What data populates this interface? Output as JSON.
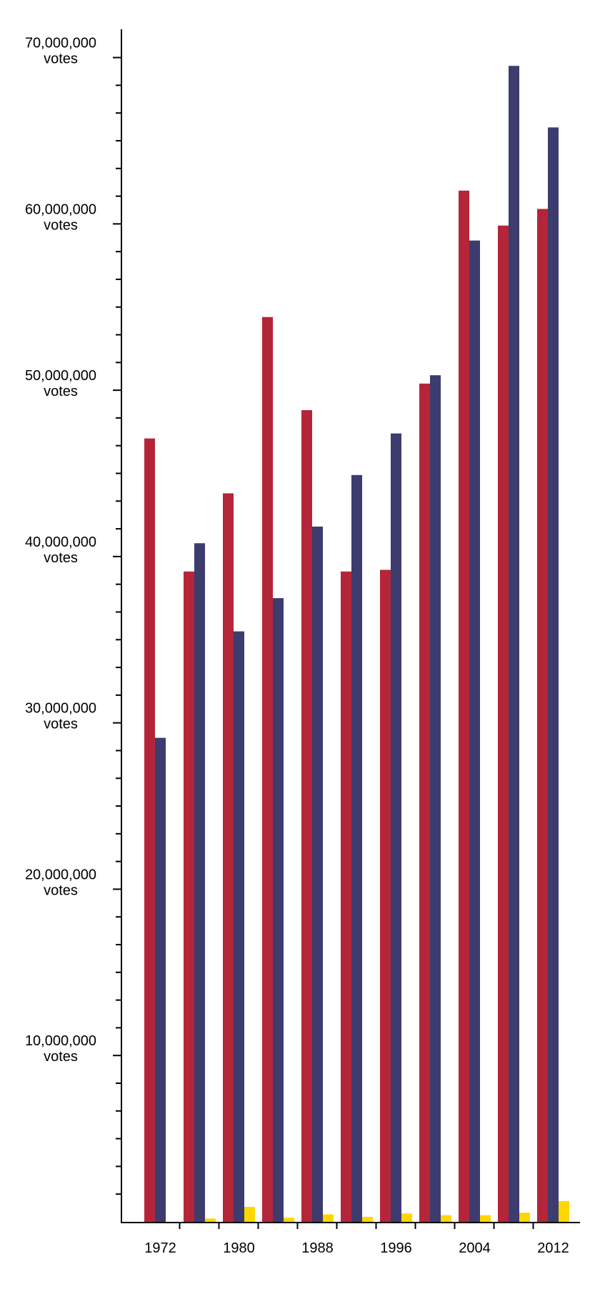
{
  "chart_data": {
    "type": "bar",
    "categories": [
      "1972",
      null,
      "1980",
      null,
      "1988",
      null,
      "1996",
      null,
      "2004",
      null,
      "2012"
    ],
    "series": [
      {
        "color": "#b5253a",
        "values": [
          47100000,
          39100000,
          43800000,
          54400000,
          48800000,
          39100000,
          39200000,
          50400000,
          62000000,
          59900000,
          60900000
        ]
      },
      {
        "color": "#3c3c6e",
        "values": [
          29100000,
          40800000,
          35500000,
          37500000,
          41800000,
          44900000,
          47400000,
          50900000,
          59000000,
          69500000,
          65800000
        ]
      },
      {
        "color": "#ffd700",
        "values": [
          0,
          200000,
          900000,
          250000,
          450000,
          300000,
          500000,
          400000,
          400000,
          550000,
          1250000
        ]
      }
    ],
    "ylim": [
      0,
      71700000
    ],
    "yticks": [
      {
        "value": 10000000,
        "label": "10,000,000 votes"
      },
      {
        "value": 20000000,
        "label": "20,000,000 votes"
      },
      {
        "value": 30000000,
        "label": "30,000,000 votes"
      },
      {
        "value": 40000000,
        "label": "40,000,000 votes"
      },
      {
        "value": 50000000,
        "label": "50,000,000 votes"
      },
      {
        "value": 60000000,
        "label": "60,000,000 votes"
      },
      {
        "value": 70000000,
        "label": "70,000,000 votes"
      }
    ],
    "minor_yticks": [
      1666667,
      3333333,
      5000000,
      6666667,
      8333333,
      11666667,
      13333333,
      15000000,
      16666667,
      18333333,
      21666667,
      23333333,
      25000000,
      26666667,
      28333333,
      31666667,
      33333333,
      35000000,
      36666667,
      38333333,
      41666667,
      43333333,
      45000000,
      46666667,
      48333333,
      51666667,
      53333333,
      55000000,
      56666667,
      58333333,
      61666667,
      63333333,
      65000000,
      66666667,
      68333333
    ],
    "grid": false
  }
}
